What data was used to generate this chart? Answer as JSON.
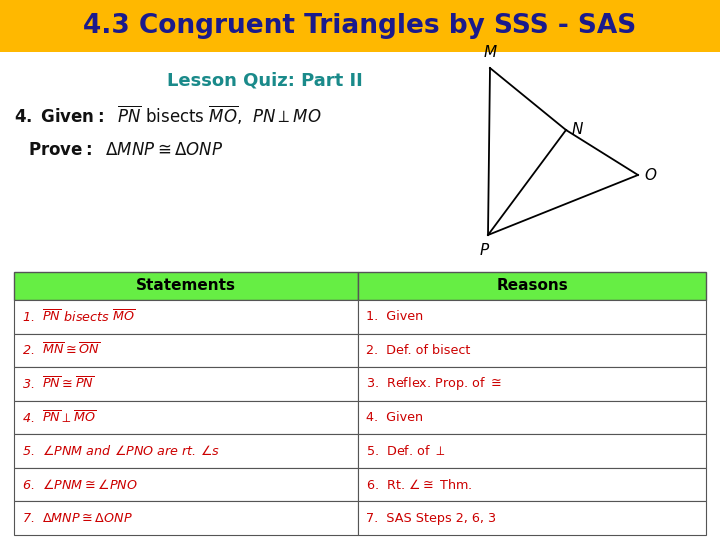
{
  "title": "4.3 Congruent Triangles by SSS - SAS",
  "title_bg": "#FFB800",
  "title_color": "#1a1a8c",
  "subtitle": "Lesson Quiz: Part II",
  "subtitle_color": "#1a8a8a",
  "body_bg": "#ffffff",
  "text_color": "#cc0000",
  "header_bg": "#66ee44",
  "header_color": "#000000",
  "table_border": "#555555",
  "statements_header": "Statements",
  "reasons_header": "Reasons",
  "statements": [
    "$\\overline{PN}$ bisects $\\overline{MO}$",
    "$\\overline{MN} \\cong \\overline{ON}$",
    "$\\overline{PN} \\cong \\overline{PN}$",
    "$\\overline{PN} \\perp \\overline{MO}$",
    "$\\angle PNM$ and $\\angle PNO$ are rt. $\\angle$s",
    "$\\angle PNM \\cong \\angle PNO$",
    "$\\Delta MNP \\cong \\Delta ONP$"
  ],
  "reasons": [
    "Given",
    "Def. of bisect",
    "Reflex. Prop. of $\\cong$",
    "Given",
    "Def. of $\\perp$",
    "Rt. $\\angle \\cong$ Thm.",
    "SAS Steps 2, 6, 3"
  ]
}
